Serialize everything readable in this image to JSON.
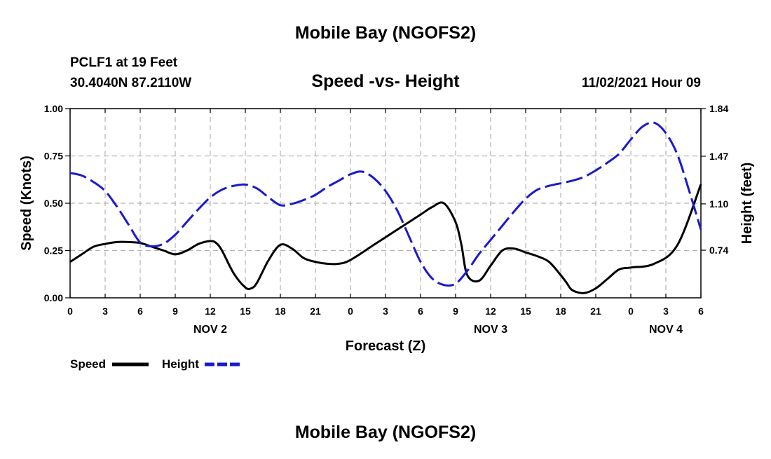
{
  "page": {
    "title": "Mobile Bay (NGOFS2)",
    "footer_title": "Mobile Bay (NGOFS2)"
  },
  "chart_data": {
    "type": "line",
    "title": "Speed -vs- Height",
    "station": "PCLF1 at 19 Feet",
    "coordinates": "30.4040N  87.2110W",
    "date": "11/02/2021 Hour 09",
    "xlabel": "Forecast (Z)",
    "ylabel": "Speed (Knots)",
    "y2label": "Height (feet)",
    "xlim": [
      0,
      54
    ],
    "ylim": [
      0,
      1
    ],
    "y2lim": [
      0.37,
      1.84
    ],
    "x_ticks": [
      0,
      3,
      6,
      9,
      12,
      15,
      18,
      21,
      24,
      27,
      30,
      33,
      36,
      39,
      42,
      45,
      48,
      51,
      54
    ],
    "x_tick_labels": [
      "0",
      "3",
      "6",
      "9",
      "12",
      "15",
      "18",
      "21",
      "0",
      "3",
      "6",
      "9",
      "12",
      "15",
      "18",
      "21",
      "0",
      "3",
      "6"
    ],
    "day_labels": [
      {
        "x": 12,
        "label": "NOV 2"
      },
      {
        "x": 36,
        "label": "NOV 3"
      },
      {
        "x": 51,
        "label": "NOV 4"
      }
    ],
    "y_ticks": [
      0,
      0.25,
      0.5,
      0.75,
      1.0
    ],
    "y_tick_labels": [
      "0.00",
      "0.25",
      "0.50",
      "0.75",
      "1.00"
    ],
    "y2_ticks": [
      0.74,
      1.1,
      1.47,
      1.84
    ],
    "y2_tick_labels": [
      "0.74",
      "1.10",
      "1.47",
      "1.84"
    ],
    "grid": true,
    "series": [
      {
        "name": "Speed",
        "axis": "left",
        "color": "#000000",
        "style": "solid",
        "x": [
          0,
          1,
          2,
          3,
          4,
          5,
          6,
          7,
          8,
          9,
          10,
          11,
          12,
          12.5,
          13,
          14,
          15,
          15.5,
          16,
          17,
          18,
          19,
          20,
          21,
          22,
          23,
          24,
          26,
          28,
          30,
          31,
          32,
          33,
          33.5,
          34,
          35,
          36,
          37,
          38,
          39,
          40,
          41,
          42,
          42.5,
          43,
          44,
          45,
          46,
          47,
          48,
          50,
          52,
          54
        ],
        "values": [
          0.19,
          0.23,
          0.27,
          0.285,
          0.295,
          0.295,
          0.29,
          0.27,
          0.25,
          0.23,
          0.25,
          0.285,
          0.3,
          0.29,
          0.25,
          0.13,
          0.055,
          0.05,
          0.08,
          0.2,
          0.28,
          0.26,
          0.21,
          0.19,
          0.18,
          0.18,
          0.2,
          0.28,
          0.36,
          0.44,
          0.48,
          0.5,
          0.4,
          0.28,
          0.12,
          0.09,
          0.17,
          0.25,
          0.26,
          0.24,
          0.22,
          0.19,
          0.12,
          0.08,
          0.04,
          0.025,
          0.05,
          0.1,
          0.15,
          0.16,
          0.18,
          0.28,
          0.6
        ]
      },
      {
        "name": "Height",
        "axis": "right",
        "color": "#1a1acd",
        "style": "dashed",
        "x": [
          0,
          1,
          2,
          3,
          4,
          5,
          6,
          7,
          8,
          9,
          10,
          11,
          12,
          13,
          14,
          15,
          16,
          17,
          18,
          19,
          20,
          21,
          22,
          23,
          24,
          25,
          26,
          27,
          28,
          29,
          30,
          31,
          32,
          33,
          34,
          35,
          36,
          37,
          38,
          39,
          40,
          41,
          42,
          43,
          44,
          45,
          46,
          47,
          48,
          49,
          50,
          51,
          52,
          53,
          54
        ],
        "values": [
          1.34,
          1.32,
          1.27,
          1.2,
          1.08,
          0.94,
          0.8,
          0.77,
          0.79,
          0.86,
          0.96,
          1.06,
          1.15,
          1.21,
          1.24,
          1.25,
          1.22,
          1.15,
          1.09,
          1.1,
          1.13,
          1.17,
          1.23,
          1.28,
          1.33,
          1.35,
          1.3,
          1.2,
          1.05,
          0.85,
          0.65,
          0.52,
          0.47,
          0.48,
          0.58,
          0.71,
          0.82,
          0.93,
          1.04,
          1.14,
          1.21,
          1.24,
          1.26,
          1.28,
          1.31,
          1.36,
          1.42,
          1.49,
          1.6,
          1.7,
          1.73,
          1.65,
          1.48,
          1.2,
          0.9
        ]
      }
    ],
    "legend": [
      {
        "label": "Speed",
        "color": "#000000",
        "style": "solid"
      },
      {
        "label": "Height",
        "color": "#1a1acd",
        "style": "dashed"
      }
    ]
  }
}
